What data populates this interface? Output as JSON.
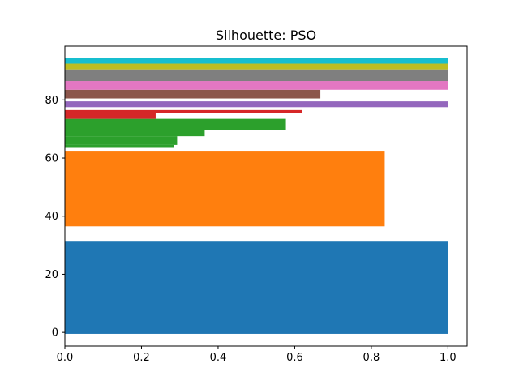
{
  "chart_data": {
    "type": "bar",
    "orientation": "horizontal",
    "title": "Silhouette: PSO",
    "xlabel": "",
    "ylabel": "",
    "xlim": [
      0.0,
      1.05
    ],
    "ylim": [
      -4.7,
      98.5
    ],
    "x_ticks": [
      "0.0",
      "0.2",
      "0.4",
      "0.6",
      "0.8",
      "1.0"
    ],
    "y_ticks": [
      "0",
      "20",
      "40",
      "60",
      "80"
    ],
    "grid": false,
    "legend": "none",
    "bars": [
      {
        "y0": -0.5,
        "y1": 31.5,
        "value": 1.0,
        "color": "#1f77b4"
      },
      {
        "y0": 36.5,
        "y1": 62.5,
        "value": 0.835,
        "color": "#ff7f0e"
      },
      {
        "y0": 63.5,
        "y1": 64.5,
        "value": 0.285,
        "color": "#2ca02c"
      },
      {
        "y0": 64.5,
        "y1": 67.5,
        "value": 0.293,
        "color": "#2ca02c"
      },
      {
        "y0": 67.5,
        "y1": 69.5,
        "value": 0.365,
        "color": "#2ca02c"
      },
      {
        "y0": 69.5,
        "y1": 73.5,
        "value": 0.577,
        "color": "#2ca02c"
      },
      {
        "y0": 73.5,
        "y1": 75.5,
        "value": 0.237,
        "color": "#d62728"
      },
      {
        "y0": 75.5,
        "y1": 76.5,
        "value": 0.62,
        "color": "#d62728"
      },
      {
        "y0": 77.5,
        "y1": 79.5,
        "value": 1.0,
        "color": "#9467bd"
      },
      {
        "y0": 80.5,
        "y1": 83.5,
        "value": 0.667,
        "color": "#8c564b"
      },
      {
        "y0": 83.5,
        "y1": 86.5,
        "value": 1.0,
        "color": "#e377c2"
      },
      {
        "y0": 86.5,
        "y1": 90.5,
        "value": 1.0,
        "color": "#7f7f7f"
      },
      {
        "y0": 90.5,
        "y1": 92.5,
        "value": 1.0,
        "color": "#bcbd22"
      },
      {
        "y0": 92.5,
        "y1": 94.5,
        "value": 1.0,
        "color": "#17becf"
      }
    ]
  }
}
